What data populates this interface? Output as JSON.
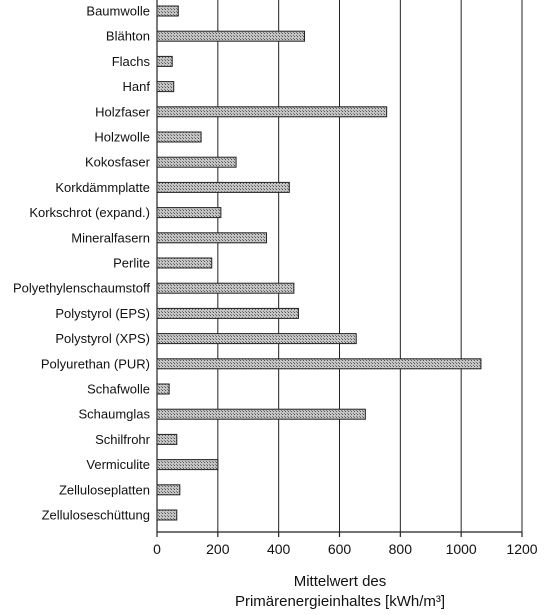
{
  "chart_data": {
    "type": "bar",
    "orientation": "horizontal",
    "categories": [
      "Baumwolle",
      "Blähton",
      "Flachs",
      "Hanf",
      "Holzfaser",
      "Holzwolle",
      "Kokosfaser",
      "Korkdämmplatte",
      "Korkschrot (expand.)",
      "Mineralfasern",
      "Perlite",
      "Polyethylenschaumstoff",
      "Polystyrol (EPS)",
      "Polystyrol (XPS)",
      "Polyurethan (PUR)",
      "Schafwolle",
      "Schaumglas",
      "Schilfrohr",
      "Vermiculite",
      "Zelluloseplatten",
      "Zelluloseschüttung"
    ],
    "values": [
      70,
      485,
      50,
      55,
      755,
      145,
      260,
      435,
      210,
      360,
      180,
      450,
      465,
      655,
      1065,
      40,
      685,
      65,
      200,
      75,
      65
    ],
    "xlabel_line1": "Mittelwert des",
    "xlabel_line2": "Primärenergieinhaltes [kWh/m³]",
    "xlim": [
      0,
      1200
    ],
    "xticks": [
      0,
      200,
      400,
      600,
      800,
      1000,
      1200
    ],
    "grid": true,
    "bar_color": "#9a9a9a"
  }
}
